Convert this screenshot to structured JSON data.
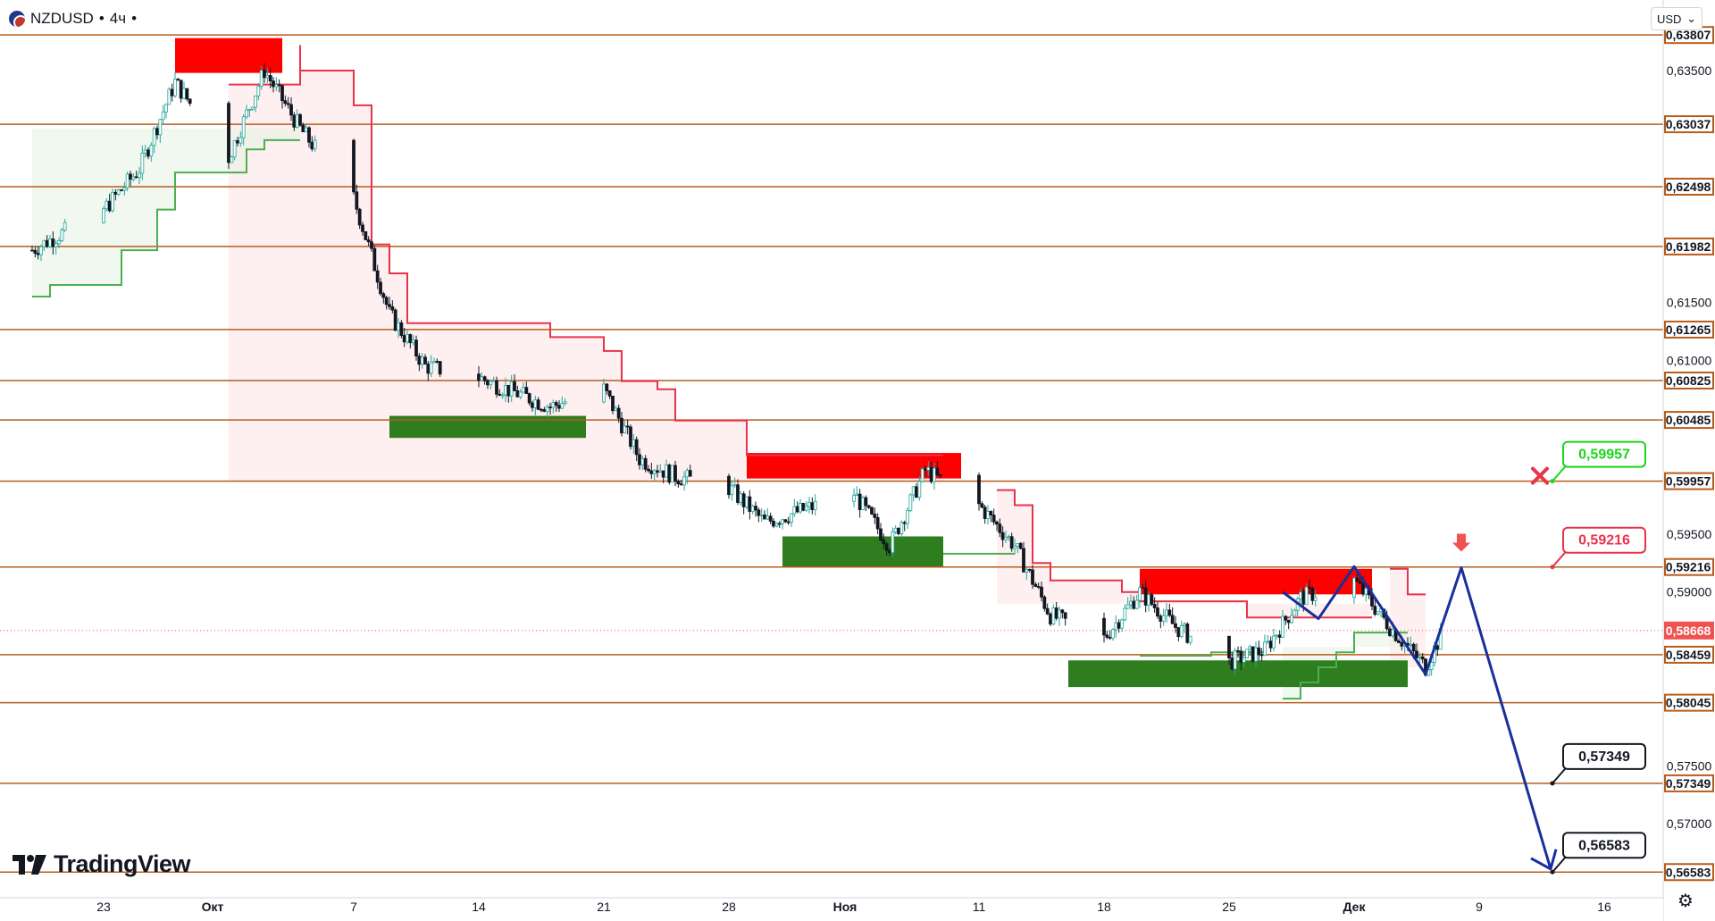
{
  "header": {
    "symbol": "NZDUSD",
    "sep": "•",
    "interval": "4ч",
    "dot": "•"
  },
  "currency_button": {
    "label": "USD",
    "chevron": "⌄"
  },
  "logo": {
    "text": "TradingView"
  },
  "settings_icon": "gear-icon",
  "colors": {
    "level_line": "#b85c1a",
    "up_candle": "#26a69a",
    "down_candle": "#131722",
    "trail_red": "#e8334a",
    "trail_green": "#4caf50",
    "red_zone": "#ff0000",
    "green_zone": "#2e7d1f",
    "forecast": "#1a2f9c",
    "price_marker": "#ef5350",
    "green_label": "#19d619",
    "red_label": "#e8334a"
  },
  "chart_data": {
    "type": "candlestick",
    "symbol": "NZDUSD",
    "timeframe": "4ч",
    "y_axis": {
      "range": [
        0.564,
        0.6382
      ],
      "ticks": [
        "0,63500",
        "0,61500",
        "0,61000",
        "0,59500",
        "0,59000",
        "0,57500",
        "0,57000"
      ]
    },
    "x_axis": {
      "ticks": [
        "23",
        "Окт",
        "7",
        "14",
        "21",
        "28",
        "Ноя",
        "11",
        "18",
        "25",
        "Дек",
        "9",
        "16"
      ]
    },
    "levels": [
      {
        "value": 0.63807,
        "label": "0,63807"
      },
      {
        "value": 0.63037,
        "label": "0,63037"
      },
      {
        "value": 0.62498,
        "label": "0,62498"
      },
      {
        "value": 0.61982,
        "label": "0,61982"
      },
      {
        "value": 0.61265,
        "label": "0,61265"
      },
      {
        "value": 0.60825,
        "label": "0,60825"
      },
      {
        "value": 0.60485,
        "label": "0,60485"
      },
      {
        "value": 0.59957,
        "label": "0,59957"
      },
      {
        "value": 0.59216,
        "label": "0,59216"
      },
      {
        "value": 0.58459,
        "label": "0,58459"
      },
      {
        "value": 0.58045,
        "label": "0,58045"
      },
      {
        "value": 0.57349,
        "label": "0,57349"
      },
      {
        "value": 0.56583,
        "label": "0,56583"
      }
    ],
    "current_price": {
      "value": 0.58668,
      "label": "0,58668"
    },
    "callouts": [
      {
        "value": 0.59957,
        "label": "0,59957",
        "style": "green"
      },
      {
        "value": 0.59216,
        "label": "0,59216",
        "style": "red"
      },
      {
        "value": 0.57349,
        "label": "0,57349",
        "style": "black"
      },
      {
        "value": 0.56583,
        "label": "0,56583",
        "style": "black"
      }
    ],
    "supply_zones": [
      {
        "from": "Sep 27",
        "to": "Oct 3",
        "high": 0.6378,
        "low": 0.6348
      },
      {
        "from": "Oct 29",
        "to": "Nov 10",
        "high": 0.602,
        "low": 0.5998
      },
      {
        "from": "Nov 20",
        "to": "Dec 3",
        "high": 0.592,
        "low": 0.5898
      }
    ],
    "demand_zones": [
      {
        "from": "Oct 9",
        "to": "Oct 20",
        "high": 0.6052,
        "low": 0.6033
      },
      {
        "from": "Oct 31",
        "to": "Nov 9",
        "high": 0.5948,
        "low": 0.5922
      },
      {
        "from": "Nov 16",
        "to": "Dec 5",
        "high": 0.5841,
        "low": 0.5818
      }
    ],
    "forecast_path": [
      {
        "date": "Nov 28",
        "price": 0.59
      },
      {
        "date": "Nov 30",
        "price": 0.5877
      },
      {
        "date": "Dec 2",
        "price": 0.5922
      },
      {
        "date": "Dec 6",
        "price": 0.5829
      },
      {
        "date": "Dec 8",
        "price": 0.5921
      },
      {
        "date": "Dec 13",
        "price": 0.5661
      }
    ],
    "price_path": [
      {
        "date": "Sep 19",
        "price": 0.6195
      },
      {
        "date": "Sep 23",
        "price": 0.623
      },
      {
        "date": "Sep 25",
        "price": 0.6265
      },
      {
        "date": "Sep 27",
        "price": 0.634
      },
      {
        "date": "Sep 30",
        "price": 0.6275
      },
      {
        "date": "Oct 2",
        "price": 0.635
      },
      {
        "date": "Oct 4",
        "price": 0.63
      },
      {
        "date": "Oct 7",
        "price": 0.624
      },
      {
        "date": "Oct 9",
        "price": 0.614
      },
      {
        "date": "Oct 11",
        "price": 0.6095
      },
      {
        "date": "Oct 14",
        "price": 0.6085
      },
      {
        "date": "Oct 18",
        "price": 0.606
      },
      {
        "date": "Oct 21",
        "price": 0.6075
      },
      {
        "date": "Oct 23",
        "price": 0.6015
      },
      {
        "date": "Oct 25",
        "price": 0.6
      },
      {
        "date": "Oct 28",
        "price": 0.599
      },
      {
        "date": "Oct 30",
        "price": 0.596
      },
      {
        "date": "Nov 4",
        "price": 0.5985
      },
      {
        "date": "Nov 6",
        "price": 0.594
      },
      {
        "date": "Nov 8",
        "price": 0.6005
      },
      {
        "date": "Nov 11",
        "price": 0.5975
      },
      {
        "date": "Nov 13",
        "price": 0.594
      },
      {
        "date": "Nov 15",
        "price": 0.588
      },
      {
        "date": "Nov 18",
        "price": 0.586
      },
      {
        "date": "Nov 20",
        "price": 0.59
      },
      {
        "date": "Nov 22",
        "price": 0.587
      },
      {
        "date": "Nov 25",
        "price": 0.584
      },
      {
        "date": "Nov 27",
        "price": 0.585
      },
      {
        "date": "Nov 29",
        "price": 0.5895
      },
      {
        "date": "Dec 2",
        "price": 0.591
      },
      {
        "date": "Dec 4",
        "price": 0.587
      },
      {
        "date": "Dec 6",
        "price": 0.5835
      },
      {
        "date": "Dec 7",
        "price": 0.5867
      }
    ]
  }
}
